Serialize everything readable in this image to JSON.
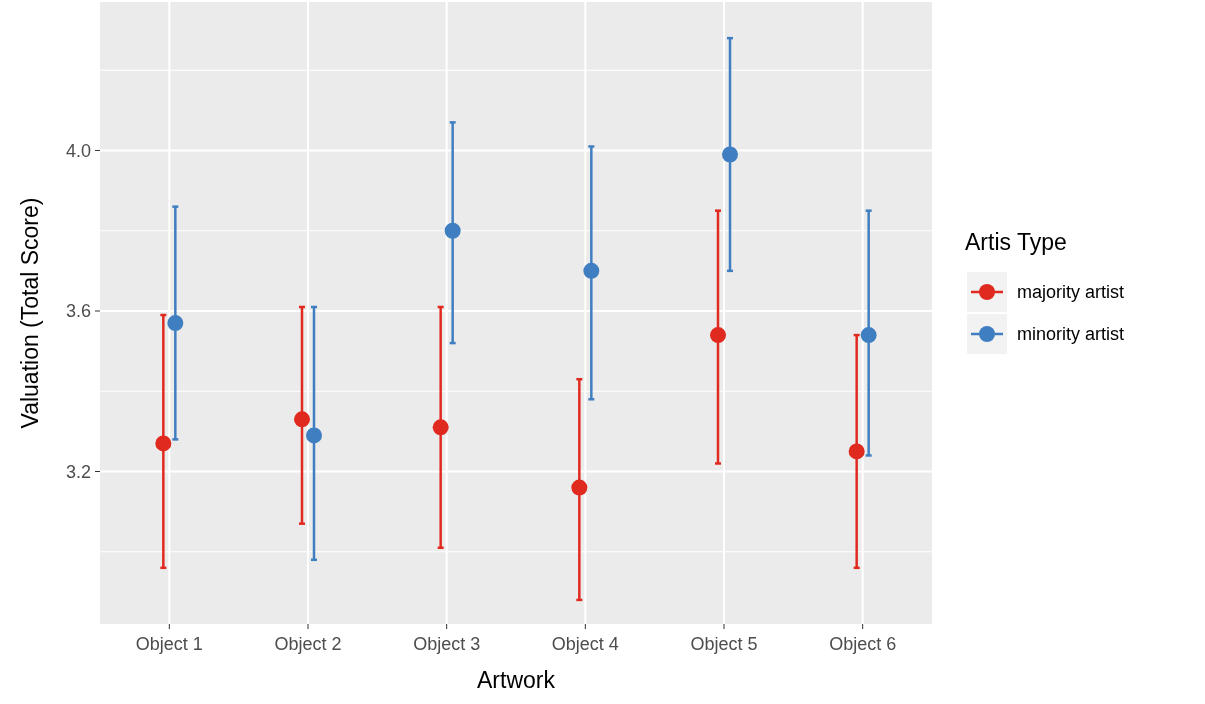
{
  "chart_data": {
    "type": "scatter",
    "xlabel": "Artwork",
    "ylabel": "Valuation (Total Score)",
    "legend_title": "Artis Type",
    "categories": [
      "Object 1",
      "Object 2",
      "Object 3",
      "Object 4",
      "Object 5",
      "Object 6"
    ],
    "series": [
      {
        "name": "majority artist",
        "color": "#e0291f",
        "values": [
          3.27,
          3.33,
          3.31,
          3.16,
          3.54,
          3.25
        ],
        "errors": [
          [
            2.96,
            3.59
          ],
          [
            3.07,
            3.61
          ],
          [
            3.01,
            3.61
          ],
          [
            2.88,
            3.43
          ],
          [
            3.22,
            3.85
          ],
          [
            2.96,
            3.54
          ]
        ]
      },
      {
        "name": "minority artist",
        "color": "#3f7fc1",
        "values": [
          3.57,
          3.29,
          3.8,
          3.7,
          3.99,
          3.54
        ],
        "errors": [
          [
            3.28,
            3.86
          ],
          [
            2.98,
            3.61
          ],
          [
            3.52,
            4.07
          ],
          [
            3.38,
            4.01
          ],
          [
            3.7,
            4.28
          ],
          [
            3.24,
            3.85
          ]
        ]
      }
    ],
    "ylim": [
      2.82,
      4.37
    ],
    "yticks": [
      3.2,
      3.6,
      {
        "value": 4,
        "label": "4.0"
      }
    ],
    "grid": true,
    "legend": "right",
    "marker": "circle"
  }
}
